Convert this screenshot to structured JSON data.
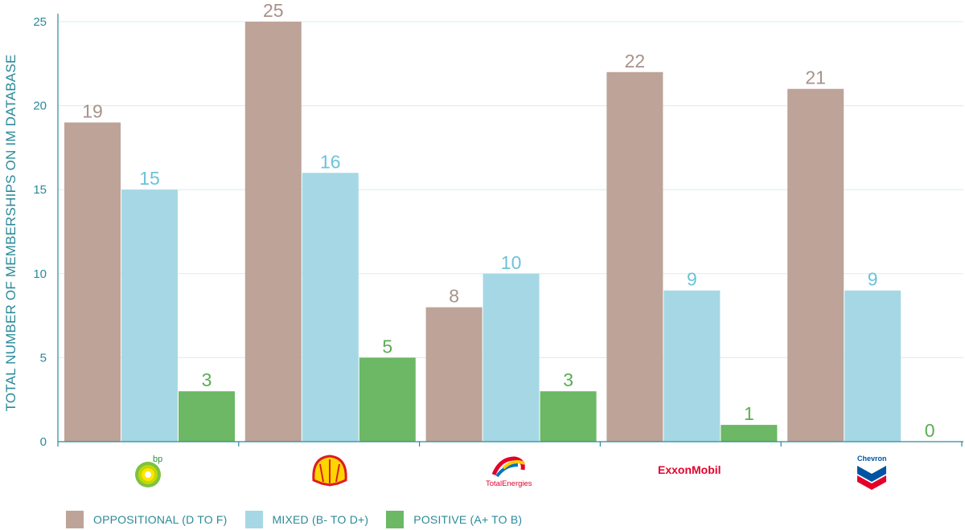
{
  "chart_data": {
    "type": "bar",
    "title": "",
    "xlabel": "",
    "ylabel": "TOTAL NUMBER OF MEMBERSHIPS ON IM DATABASE",
    "ylim": [
      0,
      25
    ],
    "yticks": [
      0,
      5,
      10,
      15,
      20,
      25
    ],
    "grid": true,
    "categories": [
      "bp",
      "Shell",
      "TotalEnergies",
      "ExxonMobil",
      "Chevron"
    ],
    "series": [
      {
        "name": "OPPOSITIONAL (D TO F)",
        "color": "#bda398",
        "label_color": "#a89289",
        "values": [
          19,
          25,
          8,
          22,
          21
        ]
      },
      {
        "name": "MIXED (B- TO D+)",
        "color": "#a5d8e4",
        "label_color": "#6cc3d9",
        "values": [
          15,
          16,
          10,
          9,
          9
        ]
      },
      {
        "name": "POSITIVE (A+ TO B)",
        "color": "#6cb865",
        "label_color": "#5aad53",
        "values": [
          3,
          5,
          3,
          1,
          0
        ]
      }
    ],
    "legend_position": "bottom-left"
  },
  "logos": {
    "bp": {
      "text": "bp",
      "icon": "bp-helios-icon"
    },
    "shell": {
      "icon": "shell-pecten-icon"
    },
    "total": {
      "text": "TotalEnergies",
      "icon": "totalenergies-icon"
    },
    "exxon": {
      "text": "ExxonMobil",
      "icon": "exxonmobil-wordmark"
    },
    "chevron": {
      "text": "Chevron",
      "icon": "chevron-logo-icon"
    }
  },
  "colors": {
    "axis": "#2a8a99",
    "grid": "#d9ecef"
  }
}
